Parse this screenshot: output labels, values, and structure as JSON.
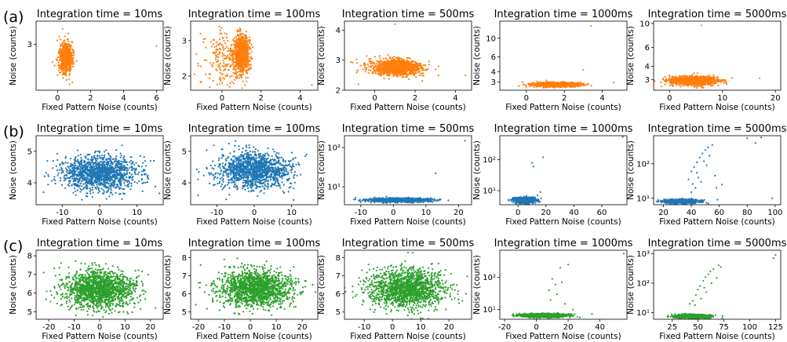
{
  "figure": {
    "row_labels": [
      "(a)",
      "(b)",
      "(c)"
    ]
  },
  "chart_data": [
    {
      "type": "scatter",
      "row": 0,
      "col": 0,
      "title": "Integration time = 10ms",
      "xlabel": "Fixed Pattern Noise (counts)",
      "ylabel": "Noise (counts)",
      "log": false,
      "xlim": [
        -1.3,
        6.4
      ],
      "ylim": [
        1.8,
        3.6
      ],
      "xticks": [
        0,
        2,
        4,
        6
      ],
      "yticks": [
        3
      ],
      "color": "#ff7f0e",
      "clusters": [
        {
          "n": 700,
          "cx": 0.5,
          "sx": 0.2,
          "cy": 2.65,
          "sy": 0.2
        }
      ],
      "points": [
        {
          "x": 6.0,
          "y": 2.95
        },
        {
          "x": 0.3,
          "y": 3.4
        },
        {
          "x": 0.9,
          "y": 2.0
        }
      ]
    },
    {
      "type": "scatter",
      "row": 0,
      "col": 1,
      "title": "Integration time = 100ms",
      "xlabel": "Fixed Pattern Noise (counts)",
      "ylabel": "Noise (counts)",
      "log": false,
      "xlim": [
        -1.6,
        4.9
      ],
      "ylim": [
        1.6,
        3.55
      ],
      "xticks": [
        0,
        2,
        4
      ],
      "yticks": [
        2,
        3
      ],
      "color": "#ff7f0e",
      "clusters": [
        {
          "n": 900,
          "cx": 1.0,
          "sx": 0.2,
          "cy": 2.6,
          "sy": 0.25
        },
        {
          "n": 180,
          "cx": 0.1,
          "sx": 0.55,
          "cy": 2.5,
          "sy": 0.4
        }
      ],
      "points": [
        {
          "x": 4.6,
          "y": 1.75
        },
        {
          "x": -1.1,
          "y": 3.2
        },
        {
          "x": -1.4,
          "y": 2.05
        }
      ]
    },
    {
      "type": "scatter",
      "row": 0,
      "col": 2,
      "title": "Integration time = 500ms",
      "xlabel": "Fixed Pattern Noise (counts)",
      "ylabel": "Noise (counts)",
      "log": false,
      "xlim": [
        -1.5,
        4.8
      ],
      "ylim": [
        2.0,
        4.3
      ],
      "xticks": [
        0,
        2,
        4
      ],
      "yticks": [
        2,
        3,
        4
      ],
      "color": "#ff7f0e",
      "clusters": [
        {
          "n": 1100,
          "cx": 1.2,
          "sx": 0.55,
          "cy": 2.75,
          "sy": 0.13
        },
        {
          "n": 80,
          "cx": 0.0,
          "sx": 0.6,
          "cy": 2.8,
          "sy": 0.15
        }
      ],
      "points": [
        {
          "x": 1.0,
          "y": 4.2
        },
        {
          "x": 4.5,
          "y": 2.5
        },
        {
          "x": -0.8,
          "y": 2.2
        }
      ]
    },
    {
      "type": "scatter",
      "row": 0,
      "col": 3,
      "title": "Integration time = 1000ms",
      "xlabel": "Fixed Pattern Noise (counts)",
      "ylabel": "Noise (counts)",
      "log": true,
      "xlim": [
        -1.4,
        5.3
      ],
      "ylim": [
        2.4,
        16
      ],
      "xticks": [
        0,
        2,
        4
      ],
      "yticks": [
        3,
        4,
        6,
        10
      ],
      "yticklabels": [
        "3",
        "4",
        "6",
        "10"
      ],
      "color": "#ff7f0e",
      "clusters": [
        {
          "n": 1100,
          "cx": 1.6,
          "sx": 0.6,
          "cy": 2.8,
          "sy": 0.08
        }
      ],
      "points": [
        {
          "x": 3.4,
          "y": 14
        },
        {
          "x": 3.0,
          "y": 4.2
        },
        {
          "x": 4.6,
          "y": 2.95
        },
        {
          "x": -0.4,
          "y": 2.7
        }
      ]
    },
    {
      "type": "scatter",
      "row": 0,
      "col": 4,
      "title": "Integration time = 5000ms",
      "xlabel": "Fixed Pattern Noise (counts)",
      "ylabel": "Noise (counts)",
      "log": true,
      "xlim": [
        -3,
        21
      ],
      "ylim": [
        2.4,
        10.5
      ],
      "xticks": [
        0,
        10,
        20
      ],
      "yticks": [
        3,
        4,
        6,
        10
      ],
      "yticklabels": [
        "3",
        "4",
        "6",
        "10"
      ],
      "color": "#ff7f0e",
      "clusters": [
        {
          "n": 1100,
          "cx": 4.5,
          "sx": 2.2,
          "cy": 2.95,
          "sy": 0.14
        }
      ],
      "points": [
        {
          "x": 6,
          "y": 9.6
        },
        {
          "x": 17,
          "y": 3.1
        },
        {
          "x": -1.5,
          "y": 2.6
        }
      ]
    },
    {
      "type": "scatter",
      "row": 1,
      "col": 0,
      "title": "Integration time = 10ms",
      "xlabel": "Fixed Pattern Noise (counts)",
      "ylabel": "Noise (counts)",
      "log": false,
      "xlim": [
        -17,
        17
      ],
      "ylim": [
        3.3,
        5.5
      ],
      "xticks": [
        -10,
        0,
        10
      ],
      "yticks": [
        4,
        5
      ],
      "color": "#1f77b4",
      "clusters": [
        {
          "n": 1300,
          "cx": 0,
          "sx": 5,
          "cy": 4.3,
          "sy": 0.27
        }
      ],
      "points": [
        {
          "x": 14.5,
          "y": 4.7
        },
        {
          "x": -15,
          "y": 3.7
        }
      ]
    },
    {
      "type": "scatter",
      "row": 1,
      "col": 1,
      "title": "Integration time = 100ms",
      "xlabel": "Fixed Pattern Noise (counts)",
      "ylabel": "Noise (counts)",
      "log": false,
      "xlim": [
        -17,
        17
      ],
      "ylim": [
        3.3,
        5.5
      ],
      "xticks": [
        -10,
        0,
        10
      ],
      "yticks": [
        4,
        5
      ],
      "color": "#1f77b4",
      "clusters": [
        {
          "n": 1300,
          "cx": 0,
          "sx": 5,
          "cy": 4.4,
          "sy": 0.28
        }
      ],
      "points": [
        {
          "x": 14,
          "y": 4.9
        },
        {
          "x": -15,
          "y": 3.6
        }
      ]
    },
    {
      "type": "scatter",
      "row": 1,
      "col": 2,
      "title": "Integration time = 500ms",
      "xlabel": "Fixed Pattern Noise (counts)",
      "ylabel": "Noise (counts)",
      "log": true,
      "xlim": [
        -15,
        24
      ],
      "ylim": [
        3.5,
        200
      ],
      "xticks": [
        -10,
        0,
        10,
        20
      ],
      "yticks": [
        10,
        100
      ],
      "yticklabels": [
        "10¹",
        "10²"
      ],
      "color": "#1f77b4",
      "clusters": [
        {
          "n": 1300,
          "cx": 2,
          "sx": 4.5,
          "cy": 4.6,
          "sy": 0.25
        }
      ],
      "points": [
        {
          "x": 22,
          "y": 150
        },
        {
          "x": 13,
          "y": 22
        }
      ]
    },
    {
      "type": "scatter",
      "row": 1,
      "col": 3,
      "title": "Integration time = 1000ms",
      "xlabel": "Fixed Pattern Noise (counts)",
      "ylabel": "Noise (counts)",
      "log": true,
      "xlim": [
        -13,
        78
      ],
      "ylim": [
        3.5,
        600
      ],
      "xticks": [
        0,
        20,
        40,
        60
      ],
      "yticks": [
        10,
        100
      ],
      "yticklabels": [
        "10¹",
        "10²"
      ],
      "color": "#1f77b4",
      "clusters": [
        {
          "n": 1000,
          "cx": 5,
          "sx": 3.5,
          "cy": 5.0,
          "sy": 0.5
        }
      ],
      "points": [
        {
          "x": 10,
          "y": 80
        },
        {
          "x": 11,
          "y": 60
        },
        {
          "x": 18,
          "y": 120
        },
        {
          "x": 75,
          "y": 550
        },
        {
          "x": 14,
          "y": 7
        },
        {
          "x": 16,
          "y": 9
        }
      ]
    },
    {
      "type": "scatter",
      "row": 1,
      "col": 4,
      "title": "Integration time = 5000ms",
      "xlabel": "Fixed Pattern Noise (counts)",
      "ylabel": "Noise (counts)",
      "log": true,
      "xlim": [
        13,
        104
      ],
      "ylim": [
        6.5,
        650
      ],
      "xticks": [
        20,
        40,
        60,
        80,
        100
      ],
      "yticks": [
        10,
        100
      ],
      "yticklabels": [
        "10¹",
        "10²"
      ],
      "color": "#1f77b4",
      "clusters": [
        {
          "n": 1100,
          "cx": 33,
          "sx": 6,
          "cy": 8.2,
          "sy": 0.5
        }
      ],
      "points": [
        {
          "x": 40,
          "y": 60
        },
        {
          "x": 42,
          "y": 80
        },
        {
          "x": 44,
          "y": 110
        },
        {
          "x": 46,
          "y": 150
        },
        {
          "x": 48,
          "y": 200
        },
        {
          "x": 50,
          "y": 250
        },
        {
          "x": 52,
          "y": 300
        },
        {
          "x": 55,
          "y": 350
        },
        {
          "x": 62,
          "y": 25
        },
        {
          "x": 58,
          "y": 20
        },
        {
          "x": 47,
          "y": 30
        },
        {
          "x": 45,
          "y": 40
        },
        {
          "x": 43,
          "y": 20
        },
        {
          "x": 40,
          "y": 15
        },
        {
          "x": 38,
          "y": 35
        },
        {
          "x": 49,
          "y": 120
        },
        {
          "x": 51,
          "y": 90
        },
        {
          "x": 53,
          "y": 170
        },
        {
          "x": 80,
          "y": 550
        },
        {
          "x": 90,
          "y": 580
        },
        {
          "x": 86,
          "y": 400
        },
        {
          "x": 98,
          "y": 10
        },
        {
          "x": 57,
          "y": 45
        },
        {
          "x": 44,
          "y": 55
        },
        {
          "x": 41,
          "y": 26
        }
      ]
    },
    {
      "type": "scatter",
      "row": 2,
      "col": 0,
      "title": "Integration time = 10ms",
      "xlabel": "Fixed Pattern Noise (counts)",
      "ylabel": "Noise (counts)",
      "log": false,
      "xlim": [
        -25,
        25
      ],
      "ylim": [
        4.6,
        8.3
      ],
      "xticks": [
        -20,
        -10,
        0,
        10,
        20
      ],
      "yticks": [
        5,
        6,
        7,
        8
      ],
      "color": "#2ca02c",
      "clusters": [
        {
          "n": 1500,
          "cx": 0,
          "sx": 7,
          "cy": 6.2,
          "sy": 0.5
        }
      ],
      "points": [
        {
          "x": 22,
          "y": 5.2
        },
        {
          "x": -22,
          "y": 7.1
        }
      ]
    },
    {
      "type": "scatter",
      "row": 2,
      "col": 1,
      "title": "Integration time = 100ms",
      "xlabel": "Fixed Pattern Noise (counts)",
      "ylabel": "Noise (counts)",
      "log": false,
      "xlim": [
        -23,
        26
      ],
      "ylim": [
        4.6,
        8.4
      ],
      "xticks": [
        -20,
        -10,
        0,
        10,
        20
      ],
      "yticks": [
        5,
        6,
        7,
        8
      ],
      "color": "#2ca02c",
      "clusters": [
        {
          "n": 1500,
          "cx": 2,
          "sx": 7,
          "cy": 6.3,
          "sy": 0.5
        }
      ],
      "points": [
        {
          "x": 24,
          "y": 6.5
        },
        {
          "x": -21,
          "y": 5.4
        }
      ]
    },
    {
      "type": "scatter",
      "row": 2,
      "col": 2,
      "title": "Integration time = 500ms",
      "xlabel": "Fixed Pattern Noise (counts)",
      "ylabel": "Noise (counts)",
      "log": false,
      "xlim": [
        -17,
        28
      ],
      "ylim": [
        4.6,
        8.4
      ],
      "xticks": [
        -10,
        0,
        10,
        20
      ],
      "yticks": [
        5,
        6,
        7,
        8
      ],
      "color": "#2ca02c",
      "clusters": [
        {
          "n": 1500,
          "cx": 5,
          "sx": 6.5,
          "cy": 6.3,
          "sy": 0.55
        }
      ],
      "points": [
        {
          "x": 26,
          "y": 6.0
        },
        {
          "x": -14,
          "y": 5.8
        }
      ]
    },
    {
      "type": "scatter",
      "row": 2,
      "col": 3,
      "title": "Integration time = 1000ms",
      "xlabel": "Fixed Pattern Noise (counts)",
      "ylabel": "Noise (counts)",
      "log": true,
      "xlim": [
        -23,
        57
      ],
      "ylim": [
        5,
        700
      ],
      "xticks": [
        -20,
        0,
        20,
        40
      ],
      "yticks": [
        10,
        100
      ],
      "yticklabels": [
        "10¹",
        "10²"
      ],
      "color": "#2ca02c",
      "clusters": [
        {
          "n": 1300,
          "cx": 5,
          "sx": 7,
          "cy": 6.6,
          "sy": 0.4
        }
      ],
      "points": [
        {
          "x": 10,
          "y": 90
        },
        {
          "x": 12,
          "y": 60
        },
        {
          "x": 15,
          "y": 200
        },
        {
          "x": 20,
          "y": 250
        },
        {
          "x": 9,
          "y": 20
        },
        {
          "x": 13,
          "y": 30
        },
        {
          "x": 18,
          "y": 15
        },
        {
          "x": 55,
          "y": 550
        },
        {
          "x": 23,
          "y": 10
        },
        {
          "x": 8,
          "y": 40
        },
        {
          "x": 16,
          "y": 70
        }
      ]
    },
    {
      "type": "scatter",
      "row": 2,
      "col": 4,
      "title": "Integration time = 5000ms",
      "xlabel": "Fixed Pattern Noise (counts)",
      "ylabel": "Noise (counts)",
      "log": true,
      "xlim": [
        7,
        130
      ],
      "ylim": [
        6,
        1300
      ],
      "xticks": [
        25,
        50,
        75,
        100,
        125
      ],
      "yticks": [
        10,
        100,
        1000
      ],
      "yticklabels": [
        "10¹",
        "10²",
        "10³"
      ],
      "color": "#2ca02c",
      "clusters": [
        {
          "n": 1300,
          "cx": 45,
          "sx": 8,
          "cy": 7.6,
          "sy": 0.5
        }
      ],
      "points": [
        {
          "x": 45,
          "y": 25
        },
        {
          "x": 48,
          "y": 40
        },
        {
          "x": 50,
          "y": 60
        },
        {
          "x": 52,
          "y": 80
        },
        {
          "x": 55,
          "y": 120
        },
        {
          "x": 57,
          "y": 160
        },
        {
          "x": 60,
          "y": 200
        },
        {
          "x": 62,
          "y": 250
        },
        {
          "x": 65,
          "y": 300
        },
        {
          "x": 70,
          "y": 400
        },
        {
          "x": 58,
          "y": 50
        },
        {
          "x": 53,
          "y": 30
        },
        {
          "x": 47,
          "y": 18
        },
        {
          "x": 63,
          "y": 100
        },
        {
          "x": 68,
          "y": 150
        },
        {
          "x": 72,
          "y": 350
        },
        {
          "x": 42,
          "y": 20
        },
        {
          "x": 56,
          "y": 70
        },
        {
          "x": 125,
          "y": 900
        },
        {
          "x": 123,
          "y": 700
        }
      ]
    }
  ]
}
